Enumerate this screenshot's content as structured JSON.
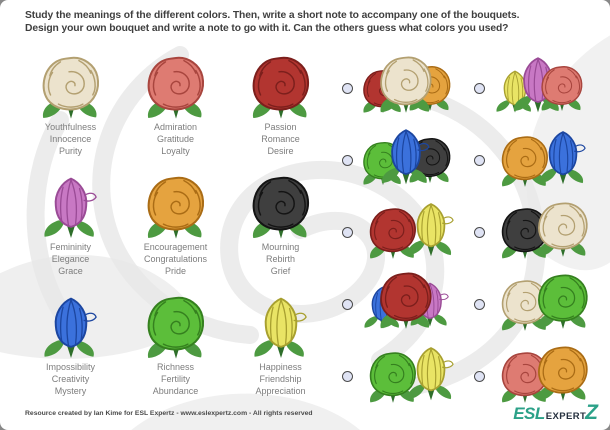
{
  "header": {
    "line1": "Study the meanings of the different colors. Then, write a short note to accompany one of the bouquets.",
    "line2": "Design your own bouquet and write a note to go with it. Can the others guess what colors you used?"
  },
  "palette": {
    "white": {
      "fill": "#ece3cd",
      "stroke": "#b3a071",
      "shape": "open"
    },
    "pink": {
      "fill": "#de7b72",
      "stroke": "#a8453e",
      "shape": "open"
    },
    "red": {
      "fill": "#b23530",
      "stroke": "#7c1f1c",
      "shape": "open"
    },
    "orchid": {
      "fill": "#c878c4",
      "stroke": "#9a4b96",
      "shape": "bud"
    },
    "orange": {
      "fill": "#e5a33f",
      "stroke": "#aa6c15",
      "shape": "open"
    },
    "black": {
      "fill": "#3f3f3f",
      "stroke": "#141414",
      "shape": "open"
    },
    "blue": {
      "fill": "#3b71dc",
      "stroke": "#1c46a0",
      "shape": "bud"
    },
    "green": {
      "fill": "#5cbe3a",
      "stroke": "#35801f",
      "shape": "open"
    },
    "yellow": {
      "fill": "#e9e465",
      "stroke": "#a8a030",
      "shape": "bud"
    },
    "leaf": "#4d9a41",
    "leaf_dark": "#2e6e2a"
  },
  "meanings": [
    {
      "color": "white",
      "words": [
        "Youthfulness",
        "Innocence",
        "Purity"
      ]
    },
    {
      "color": "pink",
      "words": [
        "Admiration",
        "Gratitude",
        "Loyalty"
      ]
    },
    {
      "color": "red",
      "words": [
        "Passion",
        "Romance",
        "Desire"
      ]
    },
    {
      "color": "orchid",
      "words": [
        "Femininity",
        "Elegance",
        "Grace"
      ]
    },
    {
      "color": "orange",
      "words": [
        "Encouragement",
        "Congratulations",
        "Pride"
      ]
    },
    {
      "color": "black",
      "words": [
        "Mourning",
        "Rebirth",
        "Grief"
      ]
    },
    {
      "color": "blue",
      "words": [
        "Impossibility",
        "Creativity",
        "Mystery"
      ]
    },
    {
      "color": "green",
      "words": [
        "Richness",
        "Fertility",
        "Abundance"
      ]
    },
    {
      "color": "yellow",
      "words": [
        "Happiness",
        "Friendship",
        "Appreciation"
      ]
    }
  ],
  "bouquets": [
    {
      "colors": [
        "red",
        "white",
        "orange"
      ],
      "front": 1
    },
    {
      "colors": [
        "yellow",
        "orchid",
        "pink"
      ],
      "front": 2
    },
    {
      "colors": [
        "green",
        "blue",
        "black"
      ],
      "front": 1
    },
    {
      "colors": [
        "orange",
        "blue"
      ],
      "front": 0
    },
    {
      "colors": [
        "red",
        "yellow"
      ],
      "front": 0
    },
    {
      "colors": [
        "black",
        "white"
      ],
      "front": 1
    },
    {
      "colors": [
        "blue",
        "red",
        "orchid"
      ],
      "front": 1
    },
    {
      "colors": [
        "white",
        "green"
      ],
      "front": 1
    },
    {
      "colors": [
        "green",
        "yellow"
      ],
      "front": 0
    },
    {
      "colors": [
        "pink",
        "orange"
      ],
      "front": 1
    }
  ],
  "footer": {
    "credit": "Resource created by Ian Kime for ESL Expertz - www.eslexpertz.com - All rights reserved"
  },
  "logo": {
    "esl": "ESL",
    "expert": "EXPERT",
    "z": "Z"
  }
}
